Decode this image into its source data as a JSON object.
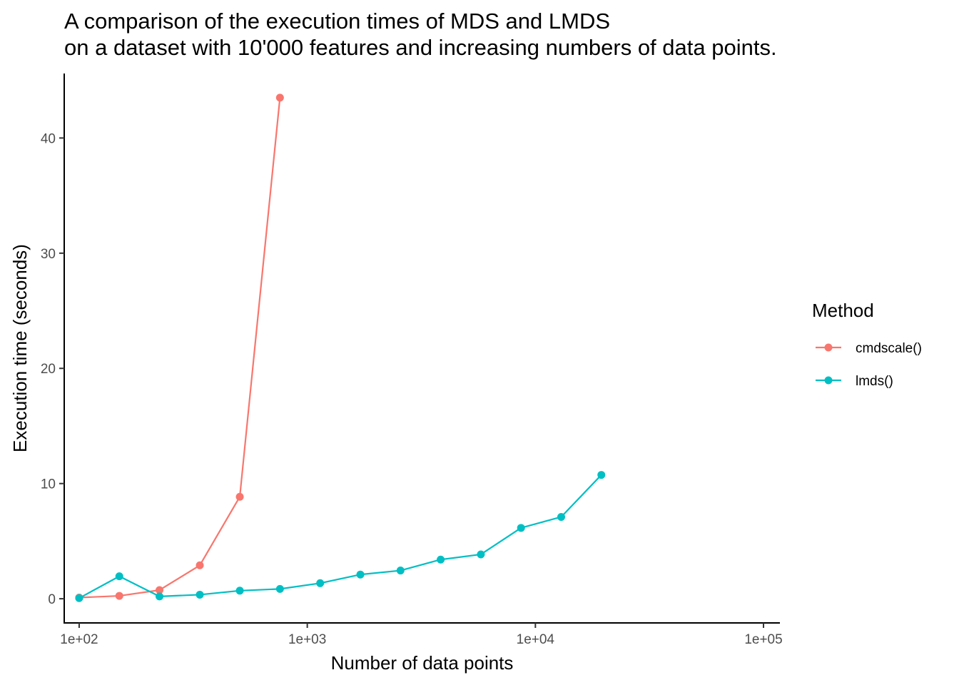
{
  "chart_data": {
    "type": "line",
    "title_lines": [
      "A comparison of the execution times of MDS and LMDS",
      "on a dataset with 10'000 features and increasing numbers of data points."
    ],
    "xlabel": "Number of data points",
    "ylabel": "Execution time (seconds)",
    "x_scale": "log10",
    "xlim": [
      86,
      118000
    ],
    "ylim": [
      -2.1,
      45.6
    ],
    "x_ticks": [
      100,
      1000,
      10000,
      100000
    ],
    "x_tick_labels": [
      "1e+02",
      "1e+03",
      "1e+04",
      "1e+05"
    ],
    "y_ticks": [
      0,
      10,
      20,
      30,
      40
    ],
    "y_tick_labels": [
      "0",
      "10",
      "20",
      "30",
      "40"
    ],
    "grid": false,
    "legend": {
      "title": "Method",
      "placement": "right"
    },
    "series": [
      {
        "name": "cmdscale()",
        "color": "#F8766D",
        "x": [
          100,
          150,
          225,
          338,
          506,
          759
        ],
        "y": [
          0.1,
          0.25,
          0.75,
          2.9,
          8.85,
          43.5
        ]
      },
      {
        "name": "lmds()",
        "color": "#00BFC4",
        "x": [
          100,
          150,
          225,
          338,
          506,
          759,
          1139,
          1709,
          2563,
          3844,
          5767,
          8650,
          12975,
          19462
        ],
        "y": [
          0.05,
          1.95,
          0.2,
          0.35,
          0.7,
          0.85,
          1.35,
          2.1,
          2.45,
          3.4,
          3.85,
          6.15,
          7.1,
          10.75
        ]
      }
    ]
  }
}
